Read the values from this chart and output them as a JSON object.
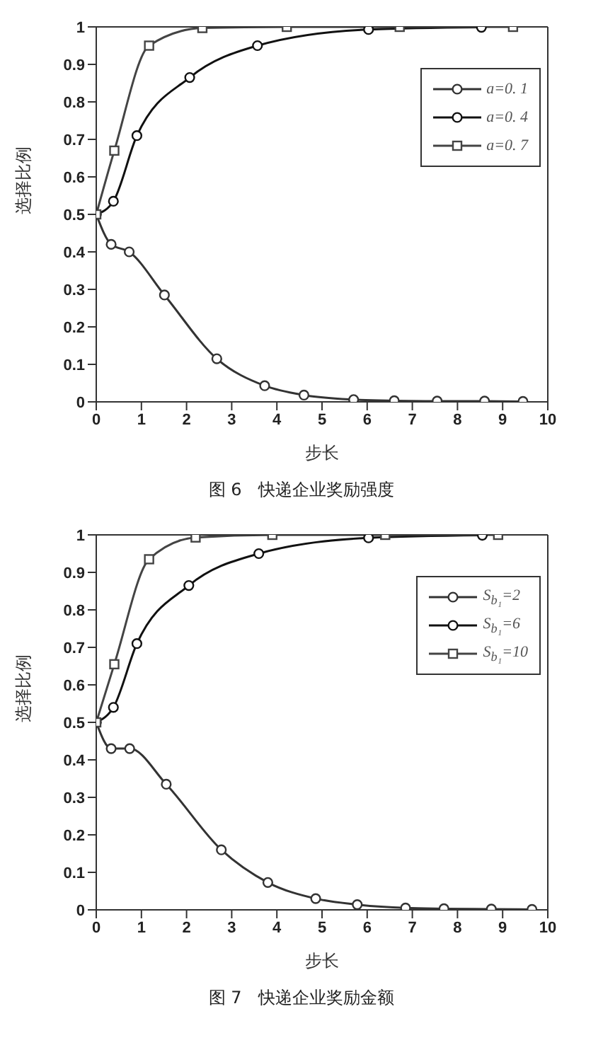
{
  "chart_data": [
    {
      "type": "line",
      "title": "图 6　快递企业奖励强度",
      "xlabel": "步长",
      "ylabel": "选择比例",
      "xlim": [
        0,
        10
      ],
      "xticks": [
        0,
        1,
        2,
        3,
        4,
        5,
        6,
        7,
        8,
        9,
        10
      ],
      "ylim": [
        0,
        1
      ],
      "yticks": [
        0,
        0.1,
        0.2,
        0.3,
        0.4,
        0.5,
        0.6,
        0.7,
        0.8,
        0.9,
        1
      ],
      "legend": "top right",
      "line_style": "solid",
      "series": [
        {
          "name": "a=0. 1",
          "color": "#333333",
          "marker": "circle",
          "x": [
            0,
            0.33,
            0.73,
            1.51,
            2.67,
            3.73,
            4.6,
            5.7,
            6.6,
            7.55,
            8.6,
            9.45
          ],
          "values": [
            0.5,
            0.42,
            0.4,
            0.285,
            0.115,
            0.043,
            0.018,
            0.006,
            0.003,
            0.002,
            0.002,
            0.001
          ]
        },
        {
          "name": "a=0. 4",
          "color": "#111111",
          "marker": "circle",
          "x": [
            0,
            0.38,
            0.9,
            2.07,
            3.57,
            6.03,
            8.53
          ],
          "values": [
            0.5,
            0.535,
            0.71,
            0.865,
            0.95,
            0.993,
            0.999
          ]
        },
        {
          "name": "a=0. 7",
          "color": "#444444",
          "marker": "square",
          "x": [
            0,
            0.4,
            1.17,
            2.35,
            4.22,
            6.72,
            9.23
          ],
          "values": [
            0.5,
            0.67,
            0.95,
            0.997,
            1,
            1,
            1
          ]
        }
      ]
    },
    {
      "type": "line",
      "title": "图 7　快递企业奖励金额",
      "xlabel": "步长",
      "ylabel": "选择比例",
      "xlim": [
        0,
        10
      ],
      "xticks": [
        0,
        1,
        2,
        3,
        4,
        5,
        6,
        7,
        8,
        9,
        10
      ],
      "ylim": [
        0,
        1
      ],
      "yticks": [
        0,
        0.1,
        0.2,
        0.3,
        0.4,
        0.5,
        0.6,
        0.7,
        0.8,
        0.9,
        1
      ],
      "legend": "top right",
      "line_style": "solid",
      "series": [
        {
          "name": "S$_{b₁}$=2",
          "color": "#333333",
          "marker": "circle",
          "x": [
            0,
            0.33,
            0.74,
            1.55,
            2.77,
            3.8,
            4.86,
            5.78,
            6.85,
            7.7,
            8.75,
            9.65
          ],
          "values": [
            0.5,
            0.43,
            0.43,
            0.335,
            0.16,
            0.073,
            0.03,
            0.014,
            0.005,
            0.003,
            0.002,
            0.001
          ]
        },
        {
          "name": "S$_{b₁}$=6",
          "color": "#111111",
          "marker": "circle",
          "x": [
            0,
            0.38,
            0.9,
            2.05,
            3.6,
            6.03,
            8.55
          ],
          "values": [
            0.5,
            0.54,
            0.71,
            0.865,
            0.95,
            0.992,
            0.999
          ]
        },
        {
          "name": "S$_{b₁}$=10",
          "color": "#444444",
          "marker": "square",
          "x": [
            0,
            0.4,
            1.17,
            2.2,
            3.9,
            6.4,
            8.9
          ],
          "values": [
            0.5,
            0.655,
            0.935,
            0.993,
            1,
            1,
            1
          ]
        }
      ]
    }
  ]
}
